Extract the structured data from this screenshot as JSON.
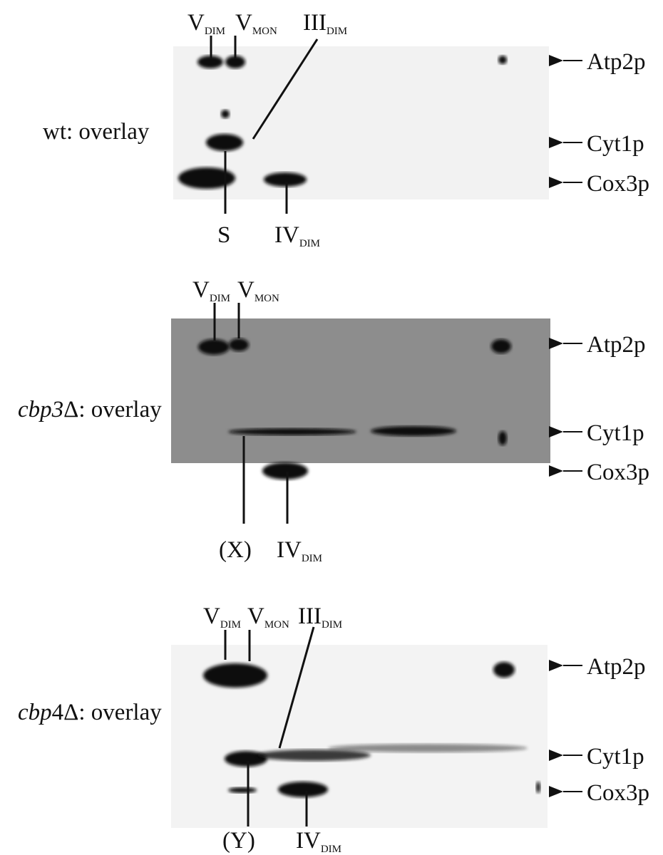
{
  "panels": [
    {
      "label": {
        "text": "wt: overlay"
      },
      "top_labels": [
        {
          "main": "V",
          "sub": "DIM"
        },
        {
          "main": "V",
          "sub": "MON"
        },
        {
          "main": "III",
          "sub": "DIM"
        }
      ],
      "bottom_labels": [
        {
          "main": "S"
        },
        {
          "main": "IV",
          "sub": "DIM"
        }
      ],
      "right_labels": [
        "Atp2p",
        "Cyt1p",
        "Cox3p"
      ]
    },
    {
      "label": {
        "italic": "cbp3",
        "text": "Δ: overlay"
      },
      "top_labels": [
        {
          "main": "V",
          "sub": "DIM"
        },
        {
          "main": "V",
          "sub": "MON"
        }
      ],
      "bottom_labels": [
        {
          "main": "(X)"
        },
        {
          "main": "IV",
          "sub": "DIM"
        }
      ],
      "right_labels": [
        "Atp2p",
        "Cyt1p",
        "Cox3p"
      ]
    },
    {
      "label": {
        "italic": "cbp",
        "text": "4Δ: overlay"
      },
      "top_labels": [
        {
          "main": "V",
          "sub": "DIM"
        },
        {
          "main": "V",
          "sub": "MON"
        },
        {
          "main": "III",
          "sub": "DIM"
        }
      ],
      "bottom_labels": [
        {
          "main": "(Y)"
        },
        {
          "main": "IV",
          "sub": "DIM"
        }
      ],
      "right_labels": [
        "Atp2p",
        "Cyt1p",
        "Cox3p"
      ]
    }
  ]
}
